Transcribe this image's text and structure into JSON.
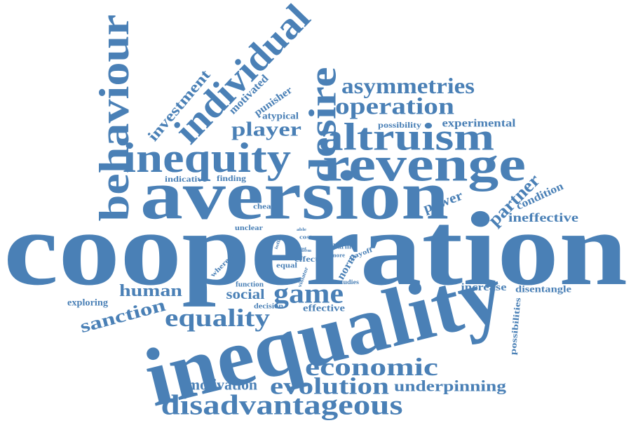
{
  "words": [
    "cooperation",
    "inequality",
    "aversion",
    "revenge",
    "altruism",
    "inequity",
    "desire",
    "individual",
    "behaviour",
    "investment",
    "motivated",
    "punisher",
    "atypical",
    "player",
    "asymmetries",
    "operation",
    "possibility",
    "experimental",
    "indicative",
    "finding",
    "power",
    "partner",
    "condition",
    "ineffective",
    "cheat",
    "unclear",
    "able",
    "inflict",
    "cost",
    "whereas",
    "most",
    "term",
    "harm",
    "more",
    "payoff",
    "norm",
    "effect",
    "equal",
    "violator",
    "studies",
    "function",
    "social",
    "decision",
    "game",
    "effective",
    "human",
    "exploring",
    "sanction",
    "equality",
    "increase",
    "disentangle",
    "possibilities",
    "economic",
    "motivation",
    "evolution",
    "underpinning",
    "disadvantageous"
  ]
}
